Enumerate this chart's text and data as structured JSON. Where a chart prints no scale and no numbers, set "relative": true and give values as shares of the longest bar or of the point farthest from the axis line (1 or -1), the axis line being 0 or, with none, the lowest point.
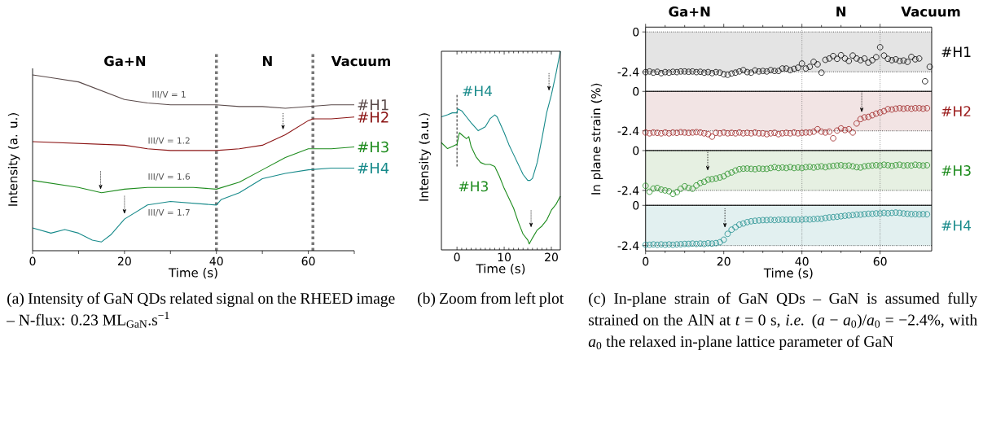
{
  "chart_data": [
    {
      "type": "line",
      "relative": true,
      "xlabel": "Time (s)",
      "ylabel": "Intensity (a. u.)",
      "xlim": [
        0,
        70
      ],
      "xticks": [
        0,
        {
          "value": 10,
          "label": null
        },
        20,
        {
          "value": 30,
          "label": null
        },
        40,
        {
          "value": 50,
          "label": null
        },
        60,
        {
          "value": 70,
          "label": null
        }
      ],
      "ref_lines": [
        {
          "axis": "x",
          "value": 40,
          "line_style": "dotted",
          "color": "#777777"
        },
        {
          "axis": "x",
          "value": 61,
          "line_style": "dotted",
          "color": "#777777"
        }
      ],
      "annotations": [
        "Ga+N",
        "N",
        "Vacuum",
        "III/V = 1",
        "III/V = 1.2",
        "III/V = 1.6",
        "III/V = 1.7",
        "(a) Intensity of GaN QDs related signal on the RHEED image – N-flux: 0.23 ML$_{GaN}$.s$^{−1}$"
      ],
      "series": [
        {
          "name": "#H1",
          "color": "#5a4a4a",
          "x": [
            0,
            5,
            10,
            15,
            20,
            25,
            30,
            35,
            40,
            45,
            50,
            55,
            60,
            65,
            70
          ],
          "values": [
            1.0,
            0.98,
            0.96,
            0.91,
            0.86,
            0.84,
            0.83,
            0.83,
            0.83,
            0.82,
            0.82,
            0.81,
            0.82,
            0.83,
            0.83
          ]
        },
        {
          "name": "#H2",
          "color": "#8b1414",
          "x": [
            0,
            10,
            20,
            25,
            30,
            35,
            40,
            45,
            50,
            55,
            60,
            61,
            65,
            70
          ],
          "values": [
            0.62,
            0.61,
            0.6,
            0.58,
            0.57,
            0.57,
            0.57,
            0.58,
            0.6,
            0.66,
            0.74,
            0.75,
            0.75,
            0.76
          ]
        },
        {
          "name": "#H3",
          "color": "#1e8c1e",
          "x": [
            0,
            5,
            10,
            15,
            20,
            25,
            30,
            35,
            40,
            45,
            50,
            55,
            60,
            65,
            70
          ],
          "values": [
            0.4,
            0.38,
            0.36,
            0.33,
            0.35,
            0.36,
            0.36,
            0.36,
            0.35,
            0.39,
            0.46,
            0.53,
            0.58,
            0.58,
            0.59
          ]
        },
        {
          "name": "#H4",
          "color": "#178a8a",
          "x": [
            0,
            4,
            7,
            10,
            13,
            15,
            17,
            20,
            25,
            30,
            35,
            40,
            41,
            45,
            50,
            55,
            60,
            65,
            70
          ],
          "values": [
            0.13,
            0.1,
            0.12,
            0.1,
            0.06,
            0.05,
            0.09,
            0.18,
            0.26,
            0.28,
            0.27,
            0.26,
            0.29,
            0.33,
            0.41,
            0.44,
            0.46,
            0.47,
            0.47
          ]
        }
      ]
    },
    {
      "type": "line",
      "relative": true,
      "xlabel": "Time (s)",
      "ylabel": "Intensity (a.u.)",
      "xlim": [
        -3.3,
        21.9
      ],
      "xticks": [
        0,
        10,
        20
      ],
      "ref_lines": [
        {
          "axis": "x",
          "value": 0,
          "line_style": "dashed",
          "color": "#000000"
        }
      ],
      "annotations": [
        "(b) Zoom from left plot"
      ],
      "series": [
        {
          "name": "#H4",
          "color": "#178a8a",
          "x": [
            -3.3,
            -2,
            -1,
            -0.3,
            0,
            0.2,
            1,
            2,
            3,
            4.5,
            6,
            7,
            8,
            8.5,
            10,
            11,
            12,
            13,
            14,
            15,
            15.5,
            16,
            17,
            18,
            19,
            20,
            21,
            21.9
          ],
          "values": [
            0.67,
            0.68,
            0.69,
            0.69,
            0.69,
            0.71,
            0.7,
            0.67,
            0.64,
            0.6,
            0.62,
            0.66,
            0.68,
            0.67,
            0.59,
            0.53,
            0.48,
            0.43,
            0.38,
            0.35,
            0.35,
            0.36,
            0.44,
            0.56,
            0.69,
            0.78,
            0.89,
            1.0
          ]
        },
        {
          "name": "#H3",
          "color": "#1e8c1e",
          "x": [
            -3.3,
            -2,
            -1,
            -0.2,
            0,
            0.5,
            1,
            2,
            2.5,
            3,
            4,
            5,
            6,
            7,
            8,
            9,
            10,
            11,
            12,
            13,
            14,
            15,
            15.3,
            16,
            17,
            18,
            19,
            20,
            21,
            21.9
          ],
          "values": [
            0.54,
            0.51,
            0.52,
            0.53,
            0.53,
            0.59,
            0.58,
            0.56,
            0.57,
            0.52,
            0.47,
            0.44,
            0.43,
            0.43,
            0.42,
            0.37,
            0.31,
            0.26,
            0.21,
            0.14,
            0.08,
            0.05,
            0.03,
            0.06,
            0.1,
            0.12,
            0.15,
            0.2,
            0.23,
            0.27
          ]
        }
      ]
    },
    {
      "type": "scatter",
      "marker": "circle",
      "tick_labels": "y",
      "xlim": [
        0,
        73.2
      ],
      "xticks": [
        0,
        20,
        40,
        60
      ],
      "ylim": [
        -3.58,
        0.29
      ],
      "yticks": [
        -2.4,
        0
      ],
      "bands": [
        {
          "axis": "y",
          "from": -2.4,
          "to": 0,
          "color": "#e4e4e4"
        }
      ],
      "ref_lines": [
        {
          "axis": "x",
          "value": 40,
          "line_style": "dotted",
          "color": "#666666"
        },
        {
          "axis": "x",
          "value": 60,
          "line_style": "dotted",
          "color": "#666666"
        },
        {
          "axis": "y",
          "value": 0,
          "line_style": "dotted",
          "color": "#000000"
        },
        {
          "axis": "y",
          "value": -2.4,
          "line_style": "dotted",
          "color": "#000000"
        }
      ],
      "annotations": [
        "Ga+N",
        "N",
        "Vacuum"
      ],
      "series": [
        {
          "name": "#H1",
          "color": "#000000",
          "x": [
            0,
            1,
            2,
            3,
            4,
            5,
            6,
            7,
            8,
            9,
            10,
            11,
            12,
            13,
            14,
            15,
            16,
            17,
            18,
            19,
            20,
            21,
            22,
            23,
            24,
            25,
            26,
            27,
            28,
            29,
            30,
            31,
            32,
            33,
            34,
            35,
            36,
            37,
            38,
            39,
            40,
            41,
            42,
            43,
            44,
            45,
            46,
            47,
            48,
            49,
            50,
            51,
            52,
            53,
            54,
            55,
            56,
            57,
            58,
            59,
            60,
            61,
            62,
            63,
            64,
            65,
            66,
            67,
            68,
            69,
            70,
            71.5,
            72.7
          ],
          "values": [
            -2.42,
            -2.38,
            -2.45,
            -2.4,
            -2.48,
            -2.42,
            -2.45,
            -2.4,
            -2.42,
            -2.38,
            -2.38,
            -2.4,
            -2.38,
            -2.42,
            -2.4,
            -2.45,
            -2.42,
            -2.48,
            -2.42,
            -2.45,
            -2.55,
            -2.58,
            -2.5,
            -2.45,
            -2.38,
            -2.3,
            -2.42,
            -2.45,
            -2.32,
            -2.38,
            -2.35,
            -2.38,
            -2.3,
            -2.35,
            -2.35,
            -2.2,
            -2.2,
            -2.3,
            -2.22,
            -2.15,
            -1.9,
            -2.2,
            -2.1,
            -1.8,
            -1.95,
            -2.45,
            -1.68,
            -1.6,
            -1.45,
            -1.62,
            -1.4,
            -1.6,
            -1.75,
            -1.42,
            -1.6,
            -1.7,
            -1.6,
            -1.85,
            -1.7,
            -1.52,
            -0.92,
            -1.42,
            -1.62,
            -1.7,
            -1.65,
            -1.75,
            -1.72,
            -1.8,
            -1.5,
            -1.65,
            -1.6,
            -2.97,
            -2.1
          ]
        }
      ]
    },
    {
      "type": "scatter",
      "marker": "circle",
      "tick_labels": "y",
      "ylabel": "In plane strain (%)",
      "xlim": [
        0,
        73.2
      ],
      "xticks": [
        0,
        20,
        40,
        60
      ],
      "ylim": [
        -3.6,
        0
      ],
      "yticks": [
        -2.4,
        0
      ],
      "x": [
        0,
        1,
        2,
        3,
        4,
        5,
        6,
        7,
        8,
        9,
        10,
        11,
        12,
        13,
        14,
        15,
        16,
        17,
        18,
        19,
        20,
        21,
        22,
        23,
        24,
        25,
        26,
        27,
        28,
        29,
        30,
        31,
        32,
        33,
        34,
        35,
        36,
        37,
        38,
        39,
        40,
        41,
        42,
        43,
        44,
        45,
        46,
        47,
        48,
        49,
        50,
        51,
        52,
        53,
        54,
        55,
        56,
        57,
        58,
        59,
        60,
        61,
        62,
        63,
        64,
        65,
        66,
        67,
        68,
        69,
        70,
        71,
        72
      ],
      "bands": [
        {
          "axis": "y",
          "from": -2.4,
          "to": 0,
          "color": "#f2e4e4"
        }
      ],
      "ref_lines": [
        {
          "axis": "x",
          "value": 40,
          "line_style": "dotted",
          "color": "#666666"
        },
        {
          "axis": "x",
          "value": 60,
          "line_style": "dotted",
          "color": "#666666"
        },
        {
          "axis": "y",
          "value": 0,
          "line_style": "dotted",
          "color": "#000000"
        },
        {
          "axis": "y",
          "value": -2.4,
          "line_style": "dotted",
          "color": "#000000"
        }
      ],
      "series": [
        {
          "name": "#H2",
          "color": "#9b1c1c",
          "values": [
            -2.5,
            -2.55,
            -2.5,
            -2.52,
            -2.55,
            -2.5,
            -2.55,
            -2.5,
            -2.52,
            -2.48,
            -2.5,
            -2.52,
            -2.5,
            -2.48,
            -2.5,
            -2.55,
            -2.6,
            -2.75,
            -2.52,
            -2.55,
            -2.5,
            -2.55,
            -2.52,
            -2.55,
            -2.5,
            -2.55,
            -2.52,
            -2.55,
            -2.5,
            -2.55,
            -2.55,
            -2.6,
            -2.55,
            -2.52,
            -2.6,
            -2.55,
            -2.52,
            -2.55,
            -2.5,
            -2.55,
            -2.52,
            -2.5,
            -2.5,
            -2.45,
            -2.3,
            -2.45,
            -2.5,
            -2.45,
            -2.85,
            -2.38,
            -2.25,
            -2.35,
            -2.3,
            -2.5,
            -1.95,
            -1.68,
            -1.58,
            -1.55,
            -1.45,
            -1.35,
            -1.28,
            -1.2,
            -1.08,
            -1.1,
            -1.05,
            -1.02,
            -1.05,
            -1.02,
            -1.05,
            -1.02,
            -1.02,
            -1.05,
            -1.02
          ]
        }
      ]
    },
    {
      "type": "scatter",
      "marker": "circle",
      "tick_labels": "y",
      "xlim": [
        0,
        73.2
      ],
      "xticks": [
        0,
        20,
        40,
        60
      ],
      "ylim": [
        -3.3,
        0
      ],
      "yticks": [
        -2.4,
        0
      ],
      "x": [
        0,
        1,
        2,
        3,
        4,
        5,
        6,
        7,
        8,
        9,
        10,
        11,
        12,
        13,
        14,
        15,
        16,
        17,
        18,
        19,
        20,
        21,
        22,
        23,
        24,
        25,
        26,
        27,
        28,
        29,
        30,
        31,
        32,
        33,
        34,
        35,
        36,
        37,
        38,
        39,
        40,
        41,
        42,
        43,
        44,
        45,
        46,
        47,
        48,
        49,
        50,
        51,
        52,
        53,
        54,
        55,
        56,
        57,
        58,
        59,
        60,
        61,
        62,
        63,
        64,
        65,
        66,
        67,
        68,
        69,
        70,
        71,
        72
      ],
      "bands": [
        {
          "axis": "y",
          "from": -2.4,
          "to": 0,
          "color": "#e6f0e2"
        }
      ],
      "ref_lines": [
        {
          "axis": "x",
          "value": 40,
          "line_style": "dotted",
          "color": "#666666"
        },
        {
          "axis": "x",
          "value": 60,
          "line_style": "dotted",
          "color": "#666666"
        },
        {
          "axis": "y",
          "value": 0,
          "line_style": "dotted",
          "color": "#000000"
        },
        {
          "axis": "y",
          "value": -2.4,
          "line_style": "dotted",
          "color": "#000000"
        }
      ],
      "series": [
        {
          "name": "#H3",
          "color": "#1e8c1e",
          "values": [
            -2.12,
            -2.48,
            -2.29,
            -2.25,
            -2.35,
            -2.4,
            -2.45,
            -2.61,
            -2.5,
            -2.3,
            -2.15,
            -2.25,
            -2.3,
            -2.1,
            -1.95,
            -1.88,
            -1.75,
            -1.72,
            -1.68,
            -1.62,
            -1.55,
            -1.4,
            -1.32,
            -1.2,
            -1.12,
            -1.09,
            -1.08,
            -1.1,
            -1.12,
            -1.08,
            -1.1,
            -1.1,
            -1.05,
            -1.0,
            -1.05,
            -1.02,
            -1.05,
            -1.0,
            -1.05,
            -1.02,
            -1.05,
            -1.0,
            -0.98,
            -1.02,
            -0.98,
            -0.95,
            -1.0,
            -0.95,
            -0.92,
            -0.9,
            -0.88,
            -0.92,
            -0.9,
            -0.95,
            -1.0,
            -1.02,
            -0.95,
            -0.92,
            -0.9,
            -0.88,
            -0.9,
            -0.85,
            -0.88,
            -0.92,
            -0.88,
            -0.85,
            -0.9,
            -0.88,
            -0.9,
            -0.85,
            -0.88,
            -0.9,
            -0.88
          ]
        }
      ]
    },
    {
      "type": "scatter",
      "marker": "circle",
      "xlabel": "Time (s)",
      "xlim": [
        0,
        73.2
      ],
      "xticks": [
        0,
        20,
        40,
        60
      ],
      "ylim": [
        -2.72,
        0
      ],
      "yticks": [
        -2.4,
        0
      ],
      "x": [
        0,
        1,
        2,
        3,
        4,
        5,
        6,
        7,
        8,
        9,
        10,
        11,
        12,
        13,
        14,
        15,
        16,
        17,
        18,
        19,
        20,
        21,
        22,
        23,
        24,
        25,
        26,
        27,
        28,
        29,
        30,
        31,
        32,
        33,
        34,
        35,
        36,
        37,
        38,
        39,
        40,
        41,
        42,
        43,
        44,
        45,
        46,
        47,
        48,
        49,
        50,
        51,
        52,
        53,
        54,
        55,
        56,
        57,
        58,
        59,
        60,
        61,
        62,
        63,
        64,
        65,
        66,
        67,
        68,
        69,
        70,
        71,
        72
      ],
      "bands": [
        {
          "axis": "y",
          "from": -2.4,
          "to": 0,
          "color": "#e2f0f0"
        }
      ],
      "ref_lines": [
        {
          "axis": "x",
          "value": 40,
          "line_style": "dotted",
          "color": "#666666"
        },
        {
          "axis": "x",
          "value": 60,
          "line_style": "dotted",
          "color": "#666666"
        },
        {
          "axis": "y",
          "value": 0,
          "line_style": "dotted",
          "color": "#000000"
        },
        {
          "axis": "y",
          "value": -2.4,
          "line_style": "dotted",
          "color": "#000000"
        }
      ],
      "annotations": [
        "(c) In-plane strain of GaN QDs – GaN is assumed fully strained on the AlN at *t* = 0 s, *i.e.* (*a* − *a*$_{0}$)/*a*$_{0}$ = −2.4%, with *a*$_{0}$ the relaxed in-plane lattice parameter of GaN"
      ],
      "series": [
        {
          "name": "#H4",
          "color": "#178a8a",
          "values": [
            -2.35,
            -2.35,
            -2.33,
            -2.35,
            -2.33,
            -2.35,
            -2.33,
            -2.35,
            -2.33,
            -2.32,
            -2.3,
            -2.3,
            -2.28,
            -2.3,
            -2.28,
            -2.3,
            -2.26,
            -2.28,
            -2.25,
            -2.2,
            -2.05,
            -1.7,
            -1.45,
            -1.3,
            -1.15,
            -1.08,
            -1.0,
            -0.95,
            -0.92,
            -0.9,
            -0.88,
            -0.88,
            -0.86,
            -0.88,
            -0.86,
            -0.85,
            -0.86,
            -0.85,
            -0.86,
            -0.85,
            -0.85,
            -0.83,
            -0.84,
            -0.82,
            -0.8,
            -0.8,
            -0.75,
            -0.72,
            -0.7,
            -0.68,
            -0.65,
            -0.62,
            -0.6,
            -0.58,
            -0.55,
            -0.55,
            -0.52,
            -0.5,
            -0.5,
            -0.48,
            -0.48,
            -0.45,
            -0.47,
            -0.45,
            -0.43,
            -0.45,
            -0.48,
            -0.5,
            -0.52,
            -0.52,
            -0.53,
            -0.52,
            -0.53
          ]
        }
      ]
    }
  ]
}
